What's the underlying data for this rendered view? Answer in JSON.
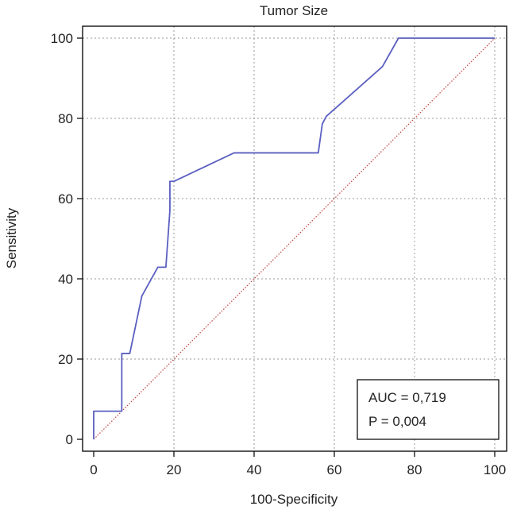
{
  "chart_data": {
    "type": "line",
    "title": "Tumor Size",
    "xlabel": "100-Specificity",
    "ylabel": "Sensitivity",
    "xlim": [
      0,
      100
    ],
    "ylim": [
      0,
      100
    ],
    "x_ticks": [
      "0",
      "20",
      "40",
      "60",
      "80",
      "100"
    ],
    "y_ticks": [
      "0",
      "20",
      "40",
      "60",
      "80",
      "100"
    ],
    "grid": true,
    "series": [
      {
        "role": "roc-curve",
        "color": "#5a5fc0",
        "x": [
          0,
          0,
          7,
          7,
          7,
          8,
          9,
          12,
          16,
          17,
          18,
          19,
          19,
          20,
          35,
          56,
          57,
          58,
          72,
          76,
          100
        ],
        "y": [
          0,
          7,
          7,
          14,
          21.4,
          21.4,
          21.4,
          35.7,
          42.9,
          42.9,
          42.9,
          57.1,
          64.3,
          64.3,
          71.4,
          71.4,
          78.6,
          80.5,
          92.9,
          100,
          100
        ]
      },
      {
        "role": "reference-diagonal",
        "color": "#c04040",
        "x": [
          0,
          100
        ],
        "y": [
          0,
          100
        ]
      }
    ],
    "annotation": {
      "auc_text": "AUC = 0,719",
      "p_text": "P = 0,004"
    }
  }
}
